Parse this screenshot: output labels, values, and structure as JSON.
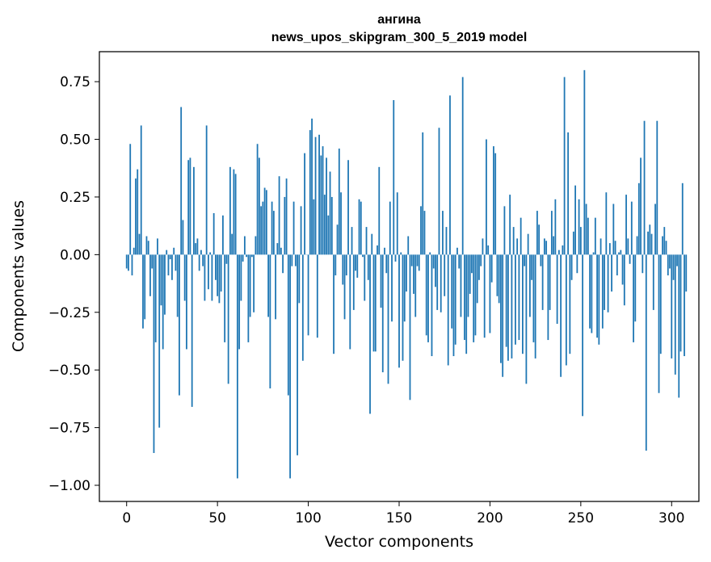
{
  "chart_data": {
    "type": "bar",
    "title": "ангина",
    "subtitle": "news_upos_skipgram_300_5_2019 model",
    "xlabel": "Vector components",
    "ylabel": "Components values",
    "xlim": [
      -15,
      315
    ],
    "ylim": [
      -1.07,
      0.88
    ],
    "xticks": [
      0,
      50,
      100,
      150,
      200,
      250,
      300
    ],
    "xtick_labels": [
      "0",
      "50",
      "100",
      "150",
      "200",
      "250",
      "300"
    ],
    "yticks": [
      -1.0,
      -0.75,
      -0.5,
      -0.25,
      0.0,
      0.25,
      0.5,
      0.75
    ],
    "ytick_labels": [
      "−1.00",
      "−0.75",
      "−0.50",
      "−0.25",
      "0.00",
      "0.25",
      "0.50",
      "0.75"
    ],
    "grid": false,
    "bar_color": "#1f77b4",
    "values": [
      -0.06,
      -0.07,
      0.48,
      -0.09,
      0.03,
      0.33,
      0.37,
      0.09,
      0.56,
      -0.32,
      -0.28,
      0.08,
      0.06,
      -0.18,
      -0.06,
      -0.86,
      -0.38,
      0.07,
      -0.75,
      -0.22,
      -0.41,
      -0.26,
      0.02,
      -0.09,
      -0.02,
      -0.11,
      0.03,
      -0.07,
      -0.27,
      -0.61,
      0.64,
      0.15,
      -0.2,
      -0.41,
      0.41,
      0.42,
      -0.66,
      0.38,
      0.05,
      0.07,
      -0.07,
      0.02,
      -0.05,
      -0.2,
      0.56,
      -0.15,
      0.01,
      -0.2,
      0.18,
      -0.11,
      -0.18,
      -0.21,
      -0.16,
      0.17,
      -0.38,
      -0.04,
      -0.56,
      0.38,
      0.09,
      0.37,
      0.35,
      -0.97,
      -0.41,
      -0.2,
      -0.03,
      0.08,
      -0.01,
      -0.38,
      -0.27,
      -0.01,
      -0.25,
      0.08,
      0.48,
      0.42,
      0.21,
      0.23,
      0.29,
      0.28,
      -0.27,
      -0.58,
      0.23,
      0.19,
      -0.28,
      0.05,
      0.34,
      0.03,
      -0.08,
      0.25,
      0.33,
      -0.61,
      -0.97,
      -0.05,
      0.23,
      -0.05,
      -0.87,
      -0.21,
      0.21,
      -0.46,
      0.44,
      0.0,
      -0.35,
      0.54,
      0.59,
      0.24,
      0.51,
      -0.36,
      0.52,
      0.43,
      0.47,
      0.26,
      0.42,
      0.17,
      0.36,
      0.25,
      -0.43,
      -0.09,
      0.13,
      0.46,
      0.27,
      -0.13,
      -0.28,
      -0.09,
      0.41,
      -0.41,
      0.12,
      -0.24,
      -0.07,
      -0.1,
      0.24,
      0.23,
      -0.01,
      -0.2,
      0.12,
      -0.11,
      -0.69,
      0.09,
      -0.42,
      -0.42,
      0.04,
      0.38,
      -0.23,
      -0.51,
      0.03,
      -0.08,
      -0.56,
      0.23,
      -0.29,
      0.67,
      -0.03,
      0.27,
      -0.49,
      0.01,
      -0.46,
      -0.29,
      -0.16,
      0.08,
      -0.63,
      -0.05,
      -0.17,
      -0.27,
      -0.05,
      -0.07,
      0.21,
      0.53,
      0.19,
      -0.35,
      -0.38,
      0.01,
      -0.44,
      -0.06,
      -0.14,
      -0.24,
      0.55,
      -0.25,
      0.19,
      -0.18,
      0.12,
      -0.48,
      0.69,
      -0.32,
      -0.44,
      -0.39,
      0.03,
      -0.06,
      -0.27,
      0.77,
      -0.37,
      -0.43,
      -0.27,
      -0.17,
      -0.08,
      -0.38,
      -0.35,
      -0.21,
      -0.11,
      -0.05,
      0.07,
      -0.36,
      0.5,
      0.04,
      -0.34,
      -0.12,
      0.47,
      0.44,
      -0.18,
      -0.21,
      -0.47,
      -0.53,
      0.21,
      -0.4,
      -0.46,
      0.26,
      -0.45,
      0.12,
      -0.39,
      0.07,
      -0.37,
      0.16,
      -0.43,
      -0.05,
      -0.56,
      0.09,
      -0.27,
      -0.11,
      -0.38,
      -0.45,
      0.19,
      0.13,
      -0.05,
      -0.24,
      0.07,
      0.06,
      -0.37,
      -0.24,
      0.19,
      0.08,
      0.24,
      -0.3,
      0.02,
      -0.53,
      0.04,
      0.77,
      -0.48,
      0.53,
      -0.43,
      -0.11,
      0.1,
      0.3,
      -0.08,
      0.24,
      0.12,
      -0.7,
      0.8,
      0.22,
      0.16,
      -0.32,
      -0.34,
      0.01,
      0.16,
      -0.36,
      -0.39,
      0.07,
      -0.32,
      -0.24,
      0.27,
      -0.25,
      0.05,
      -0.16,
      0.22,
      0.06,
      -0.09,
      0.01,
      0.02,
      -0.13,
      -0.22,
      0.26,
      0.07,
      -0.04,
      0.23,
      -0.38,
      -0.29,
      0.08,
      0.31,
      0.42,
      -0.08,
      0.58,
      -0.85,
      0.1,
      0.13,
      0.09,
      -0.24,
      0.22,
      0.58,
      -0.6,
      -0.43,
      0.08,
      0.12,
      0.06,
      -0.09,
      -0.06,
      -0.45,
      -0.11,
      -0.52,
      -0.05,
      -0.62,
      -0.42,
      0.31,
      -0.44,
      -0.16
    ]
  }
}
